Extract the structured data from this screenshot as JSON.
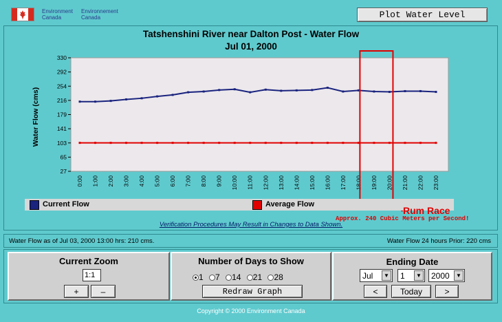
{
  "header": {
    "agency_line1_en": "Environment",
    "agency_line2_en": "Canada",
    "agency_line1_fr": "Environnement",
    "agency_line2_fr": "Canada",
    "plot_water_level_label": "Plot Water Level"
  },
  "chart_data": {
    "type": "line",
    "title": "Tatshenshini River near Dalton Post - Water Flow",
    "subtitle": "Jul 01, 2000",
    "ylabel": "Water Flow (cms)",
    "xlabel": "",
    "ylim": [
      27,
      330
    ],
    "yticks": [
      "330",
      "292",
      "254",
      "216",
      "179",
      "141",
      "103",
      "65",
      "27"
    ],
    "categories": [
      "0:00",
      "1:00",
      "2:00",
      "3:00",
      "4:00",
      "5:00",
      "6:00",
      "7:00",
      "8:00",
      "9:00",
      "10:00",
      "11:00",
      "12:00",
      "13:00",
      "14:00",
      "15:00",
      "16:00",
      "17:00",
      "18:00",
      "19:00",
      "20:00",
      "21:00",
      "22:00",
      "23:00"
    ],
    "series": [
      {
        "name": "Current Flow",
        "color": "#1A237E",
        "values": [
          213,
          213,
          215,
          219,
          222,
          227,
          231,
          238,
          240,
          244,
          246,
          238,
          245,
          242,
          243,
          244,
          250,
          240,
          243,
          240,
          239,
          241,
          241,
          239
        ]
      },
      {
        "name": "Average Flow",
        "color": "#E00000",
        "values": [
          103,
          103,
          103,
          103,
          103,
          103,
          103,
          103,
          103,
          103,
          103,
          103,
          103,
          103,
          103,
          103,
          103,
          103,
          103,
          103,
          103,
          103,
          103,
          103
        ]
      }
    ],
    "grid": false,
    "legend_placement": "bottom",
    "annotation": {
      "label": "Rum Race",
      "detail": "Approx. 240 Cubic Meters per Second!",
      "color": "#E00000"
    }
  },
  "legend": {
    "current_label": "Current Flow",
    "average_label": "Average Flow"
  },
  "verification_note": "Verification Procedures May Result in Changes to Data Shown.",
  "status": {
    "left": "Water Flow as of Jul 03, 2000 13:00 hrs: 210 cms.",
    "right": "Water Flow 24 hours Prior: 220 cms"
  },
  "zoom": {
    "title": "Current Zoom",
    "value": "1:1",
    "plus": "+",
    "minus": "–"
  },
  "days": {
    "title": "Number of Days to Show",
    "options": [
      "1",
      "7",
      "14",
      "21",
      "28"
    ],
    "selected": "1",
    "redraw_label": "Redraw Graph"
  },
  "ending_date": {
    "title": "Ending Date",
    "month": "Jul",
    "day": "1",
    "year": "2000",
    "prev": "<",
    "today": "Today",
    "next": ">"
  },
  "footer": {
    "copyright": "Copyright © 2000 Environment Canada"
  },
  "colors": {
    "background": "#5FCACE",
    "plot_area": "#ECE8EC",
    "panel_gray": "#D0D0D0"
  }
}
